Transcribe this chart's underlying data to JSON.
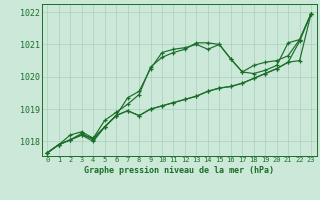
{
  "bg_color": "#cce8d8",
  "grid_color": "#aacfbe",
  "line_color": "#1a6e2a",
  "xlabel": "Graphe pression niveau de la mer (hPa)",
  "ylim": [
    1017.55,
    1022.25
  ],
  "xlim": [
    -0.5,
    23.5
  ],
  "yticks": [
    1018,
    1019,
    1020,
    1021,
    1022
  ],
  "xticks": [
    0,
    1,
    2,
    3,
    4,
    5,
    6,
    7,
    8,
    9,
    10,
    11,
    12,
    13,
    14,
    15,
    16,
    17,
    18,
    19,
    20,
    21,
    22,
    23
  ],
  "series": [
    [
      1017.65,
      1017.9,
      1018.05,
      1018.2,
      1018.1,
      1018.45,
      1018.8,
      1019.35,
      1019.55,
      1020.25,
      1020.75,
      1020.85,
      1020.9,
      1021.0,
      1020.85,
      1021.0,
      1020.55,
      1020.15,
      1020.1,
      1020.2,
      1020.35,
      1021.05,
      1021.15,
      1021.95
    ],
    [
      1017.65,
      1017.9,
      1018.05,
      1018.25,
      1018.05,
      1018.45,
      1018.8,
      1018.95,
      1018.8,
      1019.0,
      1019.1,
      1019.2,
      1019.3,
      1019.4,
      1019.55,
      1019.65,
      1019.7,
      1019.8,
      1019.95,
      1020.1,
      1020.25,
      1020.45,
      1020.5,
      1021.95
    ],
    [
      1017.65,
      1017.9,
      1018.05,
      1018.2,
      1018.0,
      1018.45,
      1018.8,
      1018.95,
      1018.8,
      1019.0,
      1019.1,
      1019.2,
      1019.3,
      1019.4,
      1019.55,
      1019.65,
      1019.7,
      1019.8,
      1019.95,
      1020.1,
      1020.25,
      1020.45,
      1021.1,
      1021.95
    ],
    [
      1017.65,
      1017.9,
      1018.2,
      1018.3,
      1018.1,
      1018.65,
      1018.9,
      1019.15,
      1019.45,
      1020.3,
      1020.6,
      1020.75,
      1020.85,
      1021.05,
      1021.05,
      1021.0,
      1020.55,
      1020.15,
      1020.35,
      1020.45,
      1020.5,
      1020.65,
      1021.15,
      1021.95
    ]
  ]
}
